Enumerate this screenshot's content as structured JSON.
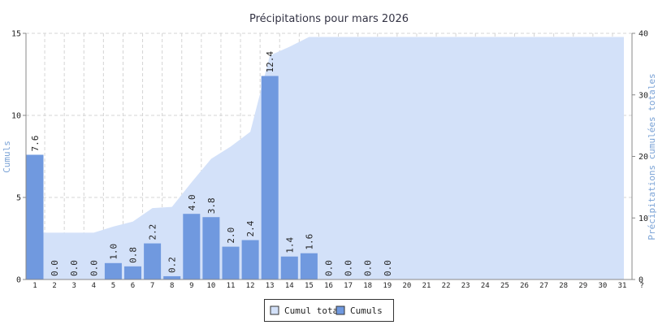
{
  "chart_data": {
    "type": "bar",
    "title": "Précipitations pour mars 2026",
    "ylabel": "Cumuls",
    "y2label": "Précipitations cumulées totales",
    "categories": [
      "1",
      "2",
      "3",
      "4",
      "5",
      "6",
      "7",
      "8",
      "9",
      "10",
      "11",
      "12",
      "13",
      "14",
      "15",
      "16",
      "17",
      "18",
      "19",
      "20",
      "21",
      "22",
      "23",
      "24",
      "25",
      "26",
      "27",
      "28",
      "29",
      "30",
      "31",
      "?"
    ],
    "series": [
      {
        "name": "Cumul total",
        "type": "area",
        "axis": "y2",
        "color": "#d3e1f9",
        "values": [
          7.6,
          7.6,
          7.6,
          7.6,
          8.6,
          9.4,
          11.6,
          11.8,
          15.8,
          19.6,
          21.6,
          24.0,
          36.4,
          37.8,
          39.4,
          39.4,
          39.4,
          39.4,
          39.4,
          39.4,
          39.4,
          39.4,
          39.4,
          39.4,
          39.4,
          39.4,
          39.4,
          39.4,
          39.4,
          39.4,
          39.4,
          null
        ]
      },
      {
        "name": "Cumuls",
        "type": "bar",
        "color": "#7099df",
        "values": [
          7.6,
          0,
          0,
          0,
          1,
          0.8,
          2.2,
          0.2,
          4,
          3.8,
          2,
          2.4,
          12.4,
          1.4,
          1.6,
          0,
          0,
          0,
          0,
          null,
          null,
          null,
          null,
          null,
          null,
          null,
          null,
          null,
          null,
          null,
          null,
          null
        ],
        "value_labels": [
          "7.6",
          "0.0",
          "0.0",
          "0.0",
          "1.0",
          "0.8",
          "2.2",
          "0.2",
          "4.0",
          "3.8",
          "2.0",
          "2.4",
          "12.4",
          "1.4",
          "1.6",
          "0.0",
          "0.0",
          "0.0",
          "0.0",
          null,
          null,
          null,
          null,
          null,
          null,
          null,
          null,
          null,
          null,
          null,
          null,
          null
        ]
      }
    ],
    "ylim": [
      0,
      15
    ],
    "yticks": [
      0,
      5,
      10,
      15
    ],
    "y2lim": [
      0,
      40
    ],
    "y2ticks": [
      0,
      10,
      20,
      30,
      40
    ],
    "grid": true
  }
}
